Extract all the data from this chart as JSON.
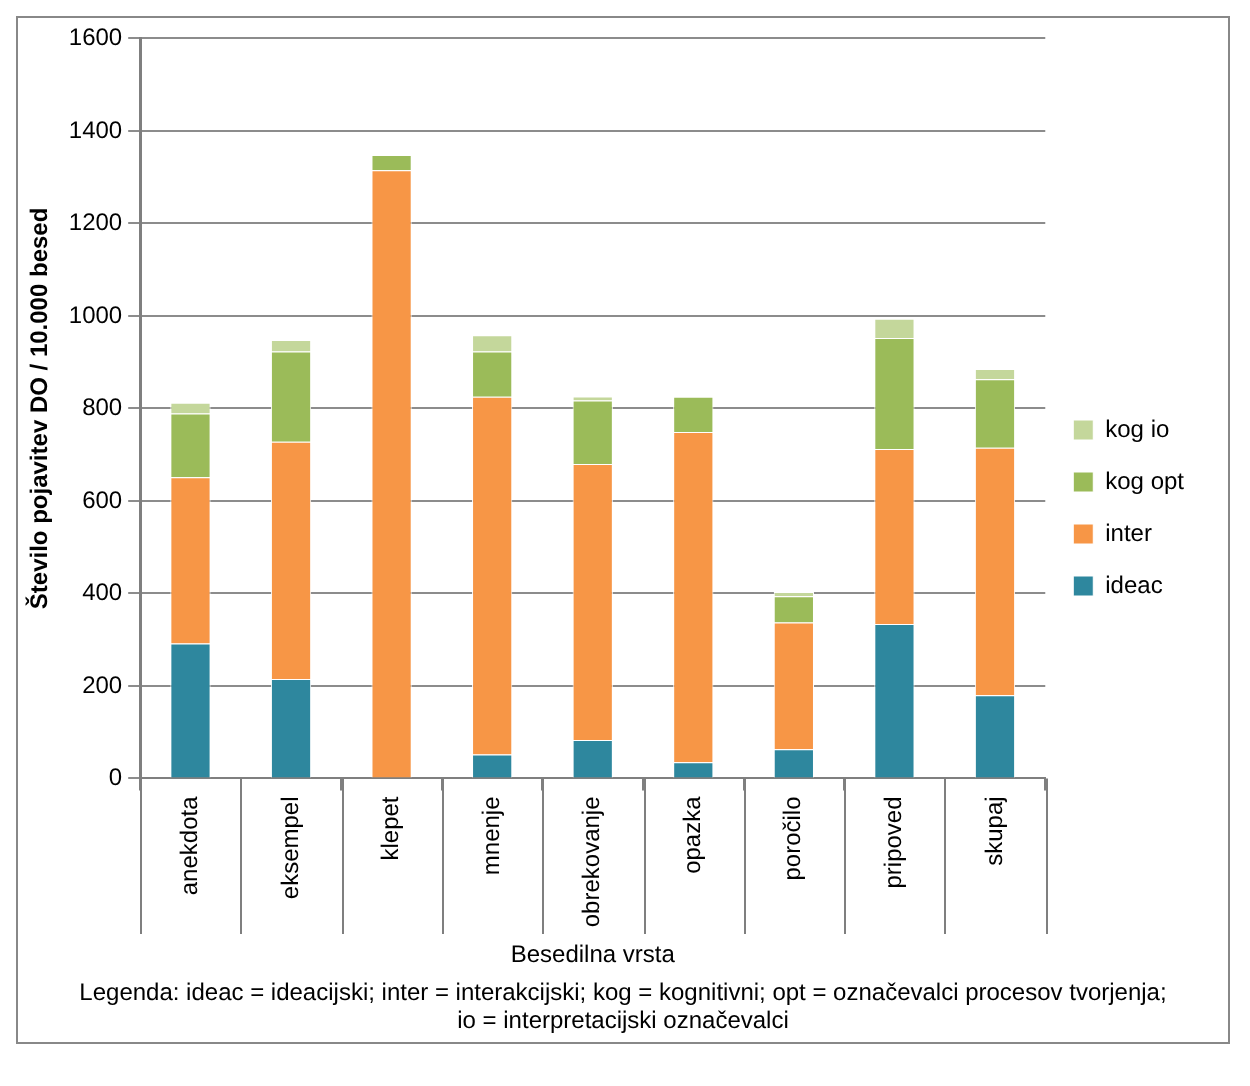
{
  "chart_data": {
    "type": "bar",
    "stacked": true,
    "categories": [
      "anekdota",
      "eksempel",
      "klepet",
      "mnenje",
      "obrekovanje",
      "opazka",
      "poročilo",
      "pripoved",
      "skupaj"
    ],
    "series": [
      {
        "name": "ideac",
        "color": "#2e879e",
        "values": [
          292,
          215,
          0,
          52,
          83,
          35,
          63,
          334,
          180
        ]
      },
      {
        "name": "inter",
        "color": "#f79646",
        "values": [
          359,
          513,
          1315,
          773,
          597,
          714,
          274,
          378,
          535
        ]
      },
      {
        "name": "kog opt",
        "color": "#9bbb59",
        "values": [
          138,
          195,
          33,
          98,
          137,
          76,
          57,
          240,
          148
        ]
      },
      {
        "name": "kog io",
        "color": "#c4d79b",
        "values": [
          23,
          25,
          0,
          35,
          9,
          0,
          9,
          42,
          22
        ]
      }
    ],
    "ylim": [
      0,
      1600
    ],
    "yticks": [
      0,
      200,
      400,
      600,
      800,
      1000,
      1200,
      1400,
      1600
    ],
    "ylabel": "Število pojavitev DO / 10.000 besed",
    "xlabel": "Besedilna vrsta",
    "grid": "y",
    "legend": "right",
    "annotations": [
      "Legenda: ideac = ideacijski; inter = interakcijski; kog = kognitivni; opt = označevalci procesov tvorjenja; io = interpretacijski označevalci"
    ]
  }
}
